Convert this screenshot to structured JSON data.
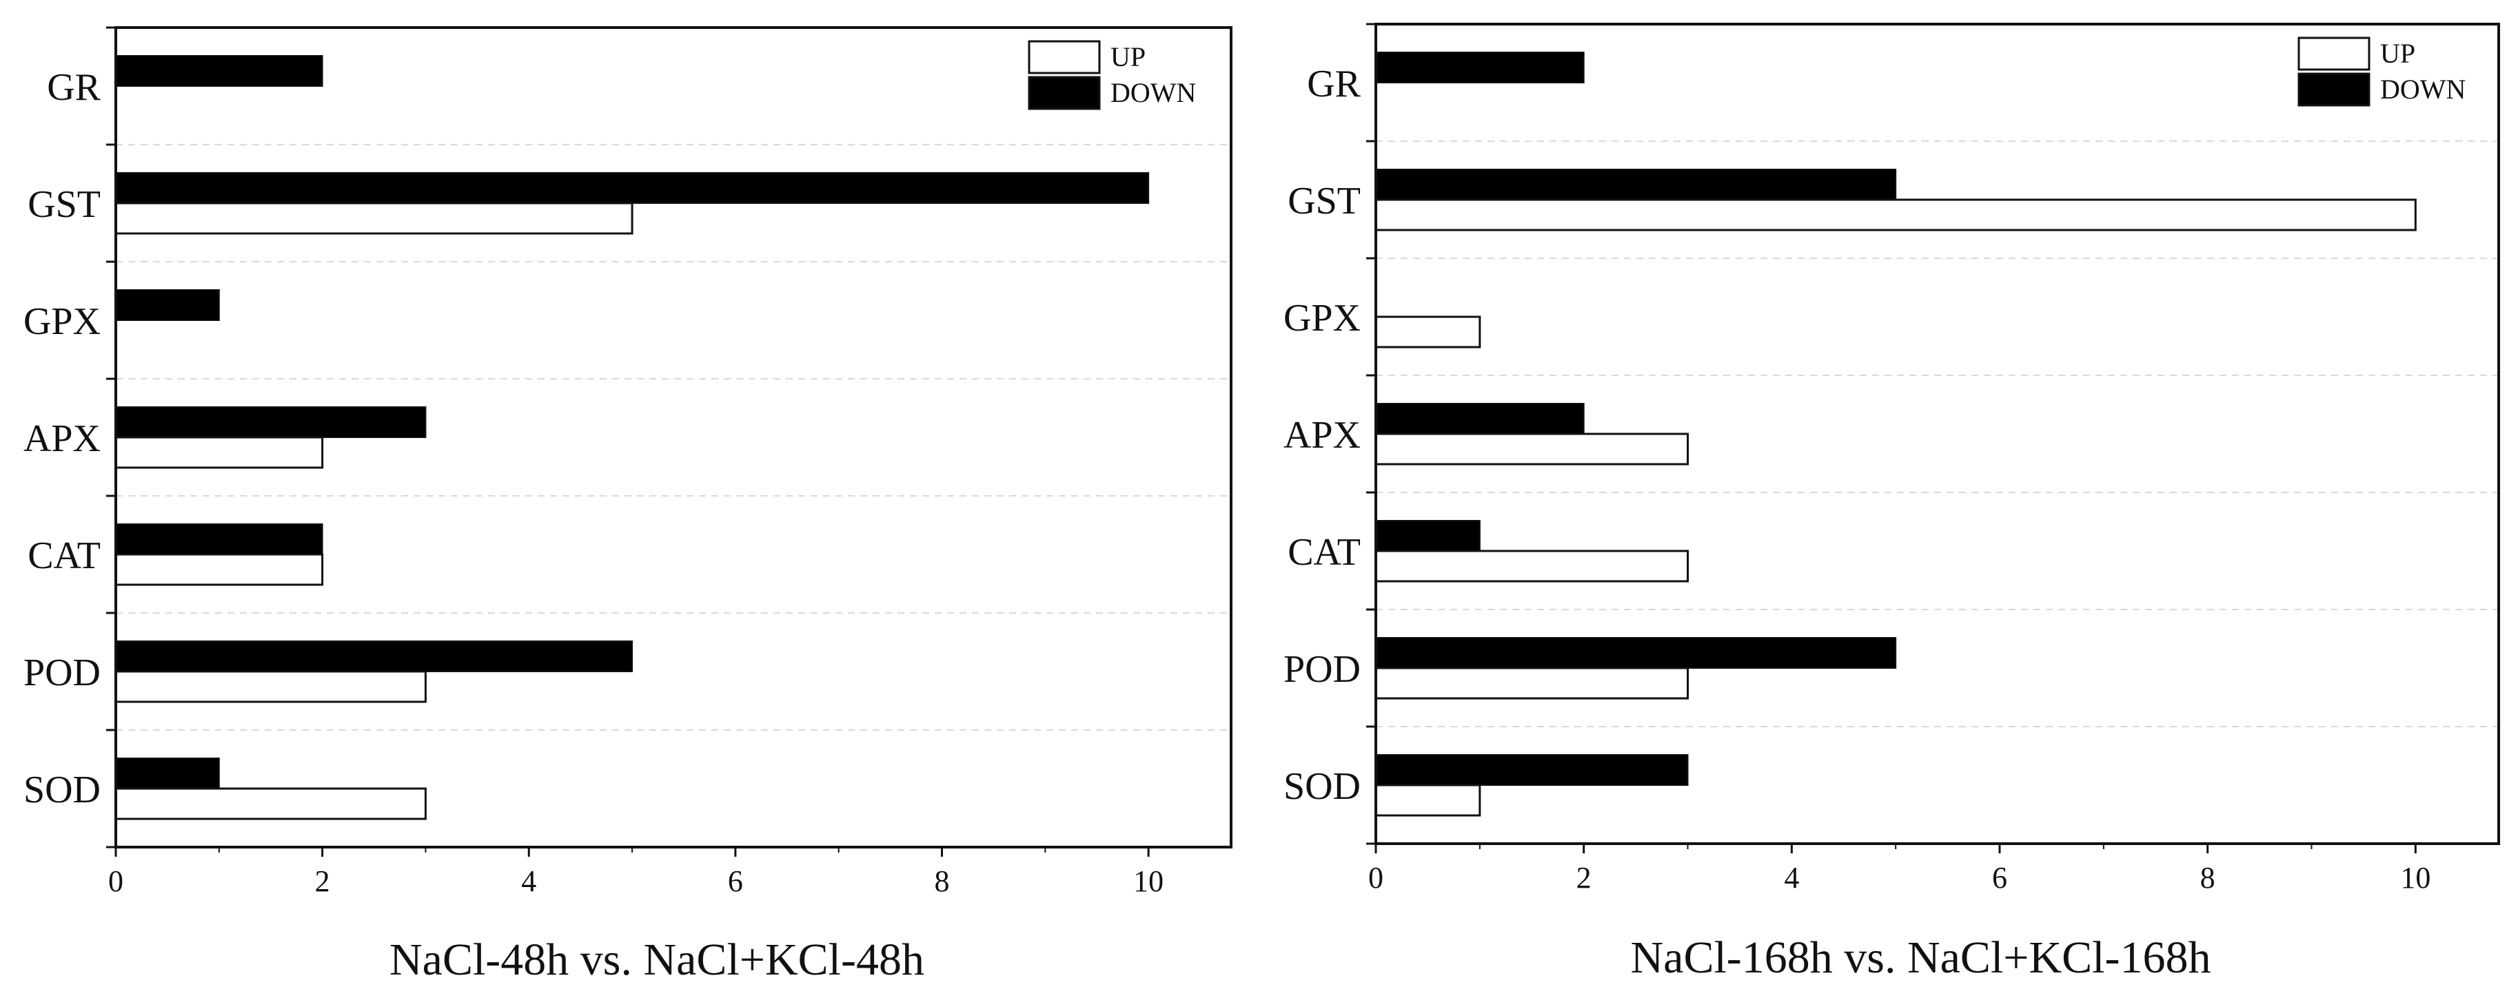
{
  "chart_data": [
    {
      "type": "bar",
      "orientation": "horizontal",
      "title": "",
      "xlabel": "NaCl-48h vs. NaCl+KCl-48h",
      "ylabel": "",
      "categories": [
        "GR",
        "GST",
        "GPX",
        "APX",
        "CAT",
        "POD",
        "SOD"
      ],
      "series": [
        {
          "name": "UP",
          "values": [
            0,
            5,
            0,
            2,
            2,
            3,
            3
          ]
        },
        {
          "name": "DOWN",
          "values": [
            2,
            10,
            1,
            3,
            2,
            5,
            1
          ]
        }
      ],
      "xlim": [
        0,
        10.8
      ],
      "xticks": [
        0,
        2,
        4,
        6,
        8,
        10
      ],
      "grid": "horizontal dashed",
      "legend": "top-right"
    },
    {
      "type": "bar",
      "orientation": "horizontal",
      "title": "",
      "xlabel": "NaCl-168h vs. NaCl+KCl-168h",
      "ylabel": "",
      "categories": [
        "GR",
        "GST",
        "GPX",
        "APX",
        "CAT",
        "POD",
        "SOD"
      ],
      "series": [
        {
          "name": "UP",
          "values": [
            0,
            10,
            1,
            3,
            3,
            3,
            1
          ]
        },
        {
          "name": "DOWN",
          "values": [
            2,
            5,
            0,
            2,
            1,
            5,
            3
          ]
        }
      ],
      "xlim": [
        0,
        10.8
      ],
      "xticks": [
        0,
        2,
        4,
        6,
        8,
        10
      ],
      "grid": "horizontal dashed",
      "legend": "top-right"
    }
  ],
  "colors": {
    "up_fill": "#ffffff",
    "down_fill": "#000000",
    "axis": "#111111",
    "grid": "#d9d9d9"
  }
}
